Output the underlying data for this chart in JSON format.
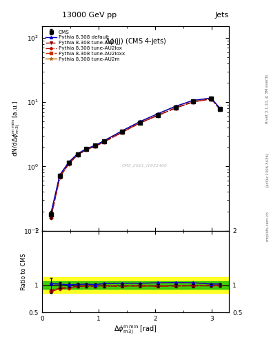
{
  "title_top": "13000 GeV pp",
  "title_right": "Jets",
  "plot_title": "Δϕ(jj) (CMS 4-jets)",
  "xlabel": "Δϕ$^{\\rm m\\,min}_{\\rm m\\,3j}$ [rad]",
  "ylabel_main": "dN/dΔϕ$^{\\rm m\\,min}_{\\rm m\\,3j}$ [a.u.]",
  "ylabel_ratio": "Ratio to CMS",
  "watermark": "CMS_2021_I1932460",
  "rivet_label": "Rivet 3.1.10, ≥ 3M events",
  "arxiv_label": "[arXiv:1306.3436]",
  "mcplots_label": "mcplots.cern.ch",
  "x_data": [
    0.157,
    0.314,
    0.471,
    0.628,
    0.785,
    0.942,
    1.099,
    1.413,
    1.728,
    2.042,
    2.356,
    2.67,
    2.985,
    3.142
  ],
  "cms_y": [
    0.18,
    0.72,
    1.15,
    1.55,
    1.85,
    2.1,
    2.45,
    3.45,
    4.8,
    6.3,
    8.2,
    10.2,
    11.3,
    7.8
  ],
  "cms_yerr": [
    0.025,
    0.04,
    0.05,
    0.06,
    0.07,
    0.08,
    0.09,
    0.11,
    0.14,
    0.16,
    0.2,
    0.25,
    0.3,
    0.25
  ],
  "pythia_default_y": [
    0.185,
    0.735,
    1.16,
    1.575,
    1.885,
    2.125,
    2.52,
    3.57,
    4.97,
    6.58,
    8.6,
    10.65,
    11.55,
    7.97
  ],
  "pythia_au2_y": [
    0.16,
    0.68,
    1.1,
    1.52,
    1.82,
    2.07,
    2.42,
    3.4,
    4.75,
    6.2,
    8.1,
    10.1,
    11.2,
    7.75
  ],
  "pythia_au2lox_y": [
    0.158,
    0.675,
    1.09,
    1.515,
    1.815,
    2.065,
    2.41,
    3.38,
    4.73,
    6.18,
    8.08,
    10.08,
    11.18,
    7.73
  ],
  "pythia_au2loxx_y": [
    0.162,
    0.685,
    1.105,
    1.525,
    1.825,
    2.075,
    2.425,
    3.41,
    4.76,
    6.22,
    8.12,
    10.12,
    11.22,
    7.76
  ],
  "pythia_au2m_y": [
    0.185,
    0.735,
    1.16,
    1.575,
    1.885,
    2.125,
    2.52,
    3.57,
    4.97,
    6.58,
    8.6,
    10.65,
    11.55,
    7.97
  ],
  "ratio_default": [
    1.028,
    1.021,
    1.009,
    1.016,
    1.019,
    1.012,
    1.029,
    1.035,
    1.035,
    1.044,
    1.049,
    1.044,
    1.022,
    1.022
  ],
  "ratio_au2": [
    0.889,
    0.944,
    0.957,
    0.981,
    0.984,
    0.986,
    0.988,
    0.986,
    0.99,
    0.984,
    0.988,
    0.99,
    0.991,
    0.994
  ],
  "ratio_au2lox": [
    0.878,
    0.938,
    0.948,
    0.977,
    0.981,
    0.983,
    0.984,
    0.98,
    0.985,
    0.981,
    0.985,
    0.988,
    0.989,
    0.991
  ],
  "ratio_au2loxx": [
    0.9,
    0.951,
    0.961,
    0.984,
    0.987,
    0.988,
    0.99,
    0.988,
    0.992,
    0.988,
    0.99,
    0.992,
    0.993,
    0.995
  ],
  "ratio_au2m": [
    1.028,
    1.021,
    1.009,
    1.016,
    1.019,
    1.012,
    1.029,
    1.035,
    1.035,
    1.044,
    1.049,
    1.044,
    1.022,
    1.022
  ],
  "cms_color": "#000000",
  "default_color": "#0000cc",
  "au2_color": "#990000",
  "au2lox_color": "#bb1100",
  "au2loxx_color": "#cc3300",
  "au2m_color": "#bb6600",
  "ylim_main": [
    0.1,
    150
  ],
  "ylim_ratio": [
    0.5,
    2.0
  ],
  "xlim": [
    0.0,
    3.3
  ],
  "band_yellow": 0.15,
  "band_green": 0.07
}
